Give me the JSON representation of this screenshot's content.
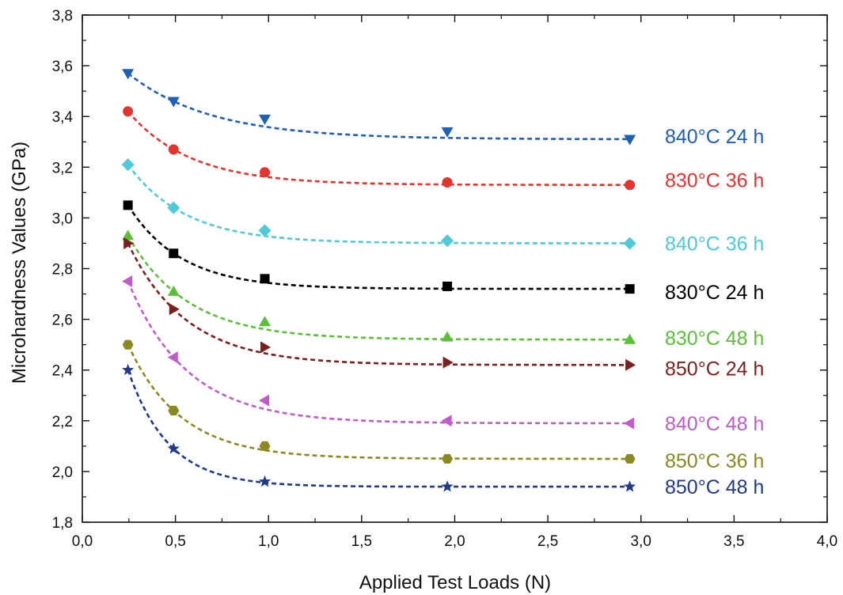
{
  "chart_data": {
    "type": "scatter",
    "title": "",
    "xlabel": "Applied Test Loads (N)",
    "ylabel": "Microhardness Values (GPa)",
    "xlim": [
      0.0,
      4.0
    ],
    "ylim": [
      1.8,
      3.8
    ],
    "x_ticks": [
      "0,0",
      "0,5",
      "1,0",
      "1,5",
      "2,0",
      "2,5",
      "3,0",
      "3,5",
      "4,0"
    ],
    "y_ticks": [
      "1,8",
      "2,0",
      "2,2",
      "2,4",
      "2,6",
      "2,8",
      "3,0",
      "3,2",
      "3,4",
      "3,6",
      "3,8"
    ],
    "x": [
      0.245,
      0.49,
      0.98,
      1.96,
      2.94
    ],
    "grid": false,
    "fit_lines": "dashed",
    "series": [
      {
        "name": "840°C 24 h",
        "color": "#1f5fb4",
        "marker": "triangle-down",
        "values": [
          3.57,
          3.46,
          3.39,
          3.34,
          3.31
        ]
      },
      {
        "name": "830°C 36 h",
        "color": "#e3342f",
        "marker": "circle",
        "values": [
          3.42,
          3.27,
          3.18,
          3.14,
          3.13
        ]
      },
      {
        "name": "840°C 36 h",
        "color": "#4fc8d8",
        "marker": "diamond",
        "values": [
          3.21,
          3.04,
          2.95,
          2.91,
          2.9
        ]
      },
      {
        "name": "830°C 24 h",
        "color": "#000000",
        "marker": "square",
        "values": [
          3.05,
          2.86,
          2.76,
          2.73,
          2.72
        ]
      },
      {
        "name": "830°C 48 h",
        "color": "#5cbf3a",
        "marker": "triangle-up",
        "values": [
          2.93,
          2.71,
          2.59,
          2.53,
          2.52
        ]
      },
      {
        "name": "850°C 24 h",
        "color": "#7b1f1f",
        "marker": "triangle-right",
        "values": [
          2.9,
          2.64,
          2.49,
          2.43,
          2.42
        ]
      },
      {
        "name": "840°C 48 h",
        "color": "#c15bc8",
        "marker": "triangle-left",
        "values": [
          2.75,
          2.45,
          2.28,
          2.2,
          2.19
        ]
      },
      {
        "name": "850°C 36 h",
        "color": "#8a8a22",
        "marker": "hexagon",
        "values": [
          2.5,
          2.24,
          2.1,
          2.05,
          2.05
        ]
      },
      {
        "name": "850°C 48 h",
        "color": "#1f3a8a",
        "marker": "star",
        "values": [
          2.4,
          2.09,
          1.96,
          1.94,
          1.94
        ]
      }
    ]
  }
}
